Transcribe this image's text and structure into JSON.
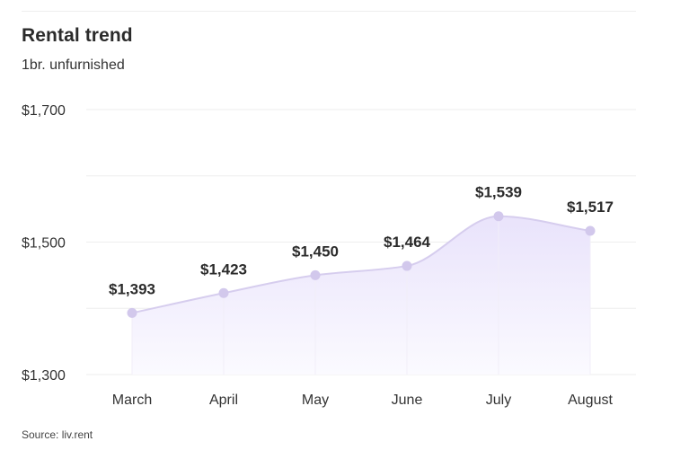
{
  "header": {
    "title": "Rental trend",
    "subtitle": "1br. unfurnished"
  },
  "footer": {
    "source": "Source: liv.rent"
  },
  "colors": {
    "line": "#d6cdee",
    "area_top": "#e9e3fb",
    "area_bottom": "#fbfaff",
    "point": "#d2c8ec",
    "grid": "#eeeeee"
  },
  "chart_data": {
    "type": "area",
    "title": "Rental trend",
    "subtitle": "1br. unfurnished",
    "categories": [
      "March",
      "April",
      "May",
      "June",
      "July",
      "August"
    ],
    "series": [
      {
        "values": [
          1393,
          1423,
          1450,
          1464,
          1539,
          1517
        ],
        "labels": [
          "$1,393",
          "$1,423",
          "$1,450",
          "$1,464",
          "$1,539",
          "$1,517"
        ]
      }
    ],
    "ylim": [
      1300,
      1700
    ],
    "yticks": [
      1300,
      1500,
      1700
    ],
    "ytick_labels": [
      "$1,300",
      "$1,500",
      "$1,700"
    ],
    "grid": true,
    "legend": "none"
  }
}
